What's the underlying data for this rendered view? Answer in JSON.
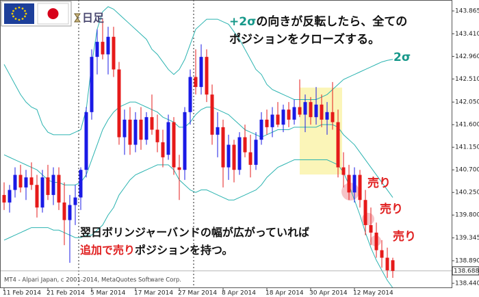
{
  "chart_data": {
    "type": "candlestick",
    "timeframe": "日足",
    "watermark": "MT4 - Alpari Japan, c 2001-2014, MetaQuotes Software Corp.",
    "categories": [
      "11 Feb 2014",
      null,
      null,
      null,
      null,
      null,
      null,
      null,
      "21 Feb 2014",
      null,
      null,
      null,
      null,
      null,
      null,
      null,
      "5 Mar 2014",
      null,
      null,
      null,
      null,
      null,
      null,
      null,
      "17 Mar 2014",
      null,
      null,
      null,
      null,
      null,
      null,
      null,
      "27 Mar 2014",
      null,
      null,
      null,
      null,
      null,
      null,
      null,
      "8 Apr 2014",
      null,
      null,
      null,
      null,
      null,
      null,
      null,
      "18 Apr 2014",
      null,
      null,
      null,
      null,
      null,
      null,
      null,
      "30 Apr 2014",
      null,
      null,
      null,
      null,
      null,
      null,
      null,
      "12 May 2014",
      null,
      null,
      null,
      null,
      null,
      null,
      null
    ],
    "open": [
      140.2,
      140.05,
      140.3,
      140.6,
      140.35,
      140.55,
      140.4,
      139.95,
      140.55,
      140.2,
      140.6,
      140.05,
      139.7,
      140.0,
      140.15,
      140.7,
      141.85,
      142.95,
      143.25,
      143.0,
      143.35,
      142.7,
      141.35,
      141.7,
      141.2,
      141.7,
      141.3,
      141.75,
      141.5,
      141.25,
      141.0,
      141.65,
      140.75,
      140.7,
      141.85,
      142.55,
      142.35,
      142.95,
      142.2,
      141.4,
      141.55,
      140.75,
      141.2,
      140.7,
      141.35,
      141.05,
      140.8,
      141.3,
      141.7,
      141.55,
      141.8,
      141.6,
      141.9,
      141.7,
      141.95,
      141.8,
      142.05,
      141.75,
      142.0,
      141.7,
      141.85,
      141.65,
      140.75,
      140.6,
      140.25,
      140.6,
      140.1,
      139.6,
      139.45,
      139.1,
      138.95,
      138.9
    ],
    "high": [
      140.45,
      140.4,
      140.75,
      140.8,
      140.7,
      140.85,
      140.6,
      140.7,
      140.8,
      140.75,
      140.75,
      140.45,
      140.2,
      140.4,
      140.75,
      141.95,
      143.1,
      143.5,
      143.7,
      143.55,
      143.55,
      142.85,
      141.9,
      141.95,
      141.85,
      141.95,
      141.85,
      142.2,
      141.8,
      141.5,
      141.8,
      141.75,
      141.0,
      141.95,
      142.7,
      143.1,
      143.2,
      143.1,
      142.4,
      141.85,
      141.7,
      141.4,
      141.3,
      141.45,
      141.6,
      141.4,
      141.45,
      141.85,
      141.9,
      141.95,
      142.05,
      142.0,
      142.05,
      142.1,
      142.5,
      142.2,
      142.15,
      142.35,
      142.2,
      142.05,
      142.45,
      141.9,
      141.05,
      140.8,
      140.75,
      140.7,
      140.3,
      139.95,
      139.65,
      139.3,
      139.15,
      138.95
    ],
    "low": [
      139.9,
      139.85,
      140.15,
      140.25,
      140.1,
      140.3,
      139.75,
      139.85,
      140.1,
      140.0,
      139.9,
      139.2,
      138.85,
      139.6,
      139.9,
      140.55,
      141.7,
      142.6,
      142.9,
      142.6,
      142.55,
      141.2,
      141.0,
      141.0,
      141.05,
      141.1,
      141.2,
      141.4,
      141.05,
      140.75,
      140.9,
      140.6,
      140.1,
      140.5,
      141.6,
      142.2,
      142.2,
      142.05,
      141.2,
      140.95,
      140.35,
      140.5,
      140.45,
      140.6,
      140.95,
      140.55,
      140.7,
      141.2,
      141.4,
      141.35,
      141.55,
      141.45,
      141.55,
      141.6,
      141.75,
      141.45,
      141.6,
      141.6,
      141.55,
      141.4,
      141.5,
      140.55,
      140.35,
      140.1,
      140.05,
      139.95,
      139.4,
      139.2,
      138.95,
      138.75,
      138.55,
      138.55
    ],
    "close": [
      140.05,
      140.3,
      140.6,
      140.35,
      140.55,
      140.4,
      139.95,
      140.55,
      140.2,
      140.6,
      140.05,
      139.7,
      140.0,
      140.15,
      140.7,
      141.85,
      142.95,
      143.25,
      143.0,
      143.35,
      142.7,
      141.35,
      141.7,
      141.2,
      141.7,
      141.3,
      141.75,
      141.5,
      141.25,
      140.95,
      141.65,
      140.75,
      140.7,
      141.85,
      142.55,
      142.35,
      142.95,
      142.2,
      141.4,
      141.55,
      140.75,
      141.2,
      140.7,
      141.35,
      141.05,
      140.8,
      141.3,
      141.7,
      141.55,
      141.8,
      141.6,
      141.9,
      141.7,
      141.95,
      141.8,
      142.05,
      141.75,
      142.0,
      141.7,
      141.85,
      141.65,
      140.75,
      140.6,
      140.25,
      140.6,
      140.1,
      139.6,
      139.45,
      139.1,
      138.95,
      138.7,
      138.688
    ],
    "up_color": "#1a1ae6",
    "down_color": "#e61a1a",
    "lines": [
      {
        "color": "#2ab3b0",
        "values": [
          142.8,
          142.6,
          142.4,
          142.2,
          142.05,
          141.95,
          141.9,
          141.6,
          141.45,
          141.4,
          141.4,
          141.4,
          141.4,
          141.45,
          141.5,
          141.9,
          142.8,
          143.5,
          143.85,
          143.95,
          143.9,
          143.8,
          143.7,
          143.6,
          143.5,
          143.4,
          143.3,
          143.1,
          143.0,
          142.85,
          142.7,
          142.6,
          142.7,
          142.9,
          143.2,
          143.5,
          143.6,
          143.7,
          143.7,
          143.7,
          143.65,
          143.6,
          143.45,
          143.3,
          143.1,
          142.9,
          142.7,
          142.6,
          142.4,
          142.3,
          142.25,
          142.2,
          142.15,
          142.1,
          142.1,
          142.1,
          142.1,
          142.1,
          142.15,
          142.2,
          142.3,
          142.4,
          142.5,
          142.55,
          142.6,
          142.65,
          142.7,
          142.75,
          142.8,
          142.85,
          142.88,
          142.9
        ]
      },
      {
        "color": "#2ab3b0",
        "values": [
          141.0,
          140.95,
          140.9,
          140.85,
          140.8,
          140.75,
          140.7,
          140.6,
          140.5,
          140.45,
          140.45,
          140.4,
          140.4,
          140.4,
          140.45,
          140.6,
          140.9,
          141.2,
          141.5,
          141.7,
          141.85,
          141.95,
          142.0,
          142.05,
          142.05,
          142.0,
          141.95,
          141.9,
          141.85,
          141.75,
          141.7,
          141.65,
          141.55,
          141.55,
          141.65,
          141.8,
          141.9,
          141.95,
          141.95,
          141.9,
          141.85,
          141.8,
          141.7,
          141.6,
          141.5,
          141.45,
          141.4,
          141.35,
          141.4,
          141.45,
          141.5,
          141.5,
          141.5,
          141.55,
          141.55,
          141.55,
          141.55,
          141.55,
          141.6,
          141.6,
          141.6,
          141.55,
          141.4,
          141.3,
          141.2,
          141.05,
          140.9,
          140.75,
          140.6,
          140.45,
          140.3,
          140.15
        ]
      },
      {
        "color": "#2ab3b0",
        "values": [
          139.3,
          139.35,
          139.4,
          139.45,
          139.5,
          139.55,
          139.55,
          139.55,
          139.55,
          139.5,
          139.5,
          139.45,
          139.4,
          139.35,
          139.35,
          139.4,
          139.4,
          139.5,
          139.6,
          139.8,
          139.95,
          140.2,
          140.35,
          140.5,
          140.6,
          140.65,
          140.7,
          140.75,
          140.8,
          140.8,
          140.8,
          140.7,
          140.5,
          140.4,
          140.3,
          140.25,
          140.3,
          140.3,
          140.25,
          140.2,
          140.15,
          140.1,
          140.1,
          140.15,
          140.2,
          140.25,
          140.3,
          140.4,
          140.55,
          140.65,
          140.75,
          140.8,
          140.85,
          140.9,
          140.9,
          140.9,
          140.9,
          140.9,
          140.9,
          140.9,
          140.85,
          140.8,
          140.65,
          140.4,
          140.1,
          139.8,
          139.45,
          139.15,
          138.9,
          138.7,
          138.5,
          138.35
        ]
      }
    ],
    "last_price": 138.688,
    "ylim": [
      138.345,
      144.083
    ],
    "yticks": [
      143.865,
      {
        "value": 143.41,
        "label": "143.410"
      },
      {
        "value": 142.96,
        "label": "142.960"
      },
      {
        "value": 142.51,
        "label": "142.510"
      },
      {
        "value": 142.05,
        "label": "142.050"
      },
      {
        "value": 141.6,
        "label": "141.600"
      },
      {
        "value": 141.15,
        "label": "141.150"
      },
      {
        "value": 140.7,
        "label": "140.700"
      },
      {
        "value": 140.25,
        "label": "140.250"
      },
      {
        "value": 139.8,
        "label": "139.800"
      },
      139.345,
      {
        "value": 138.89,
        "label": "138.890"
      },
      {
        "value": 138.44,
        "label": "138.440"
      }
    ],
    "annotations": [
      [
        {
          "text": "+2σ",
          "color": "#17988a"
        },
        {
          "text": "の向きが反転したら、全ての",
          "color": "#111111"
        }
      ],
      [
        {
          "text": "ポジションをクローズする。",
          "color": "#111111"
        }
      ],
      [
        {
          "text": "2σ",
          "color": "#17988a"
        }
      ],
      [
        {
          "text": "売り",
          "color": "#e02020"
        }
      ],
      [
        {
          "text": "売り",
          "color": "#e02020"
        }
      ],
      [
        {
          "text": "売り",
          "color": "#e02020"
        }
      ],
      [
        {
          "text": "翌日ボリンジャーバンドの幅が広がっていれば",
          "color": "#111111"
        }
      ],
      [
        {
          "text": "追加で売り",
          "color": "#e02020"
        },
        {
          "text": "ポジションを持つ。",
          "color": "#111111"
        }
      ]
    ]
  }
}
